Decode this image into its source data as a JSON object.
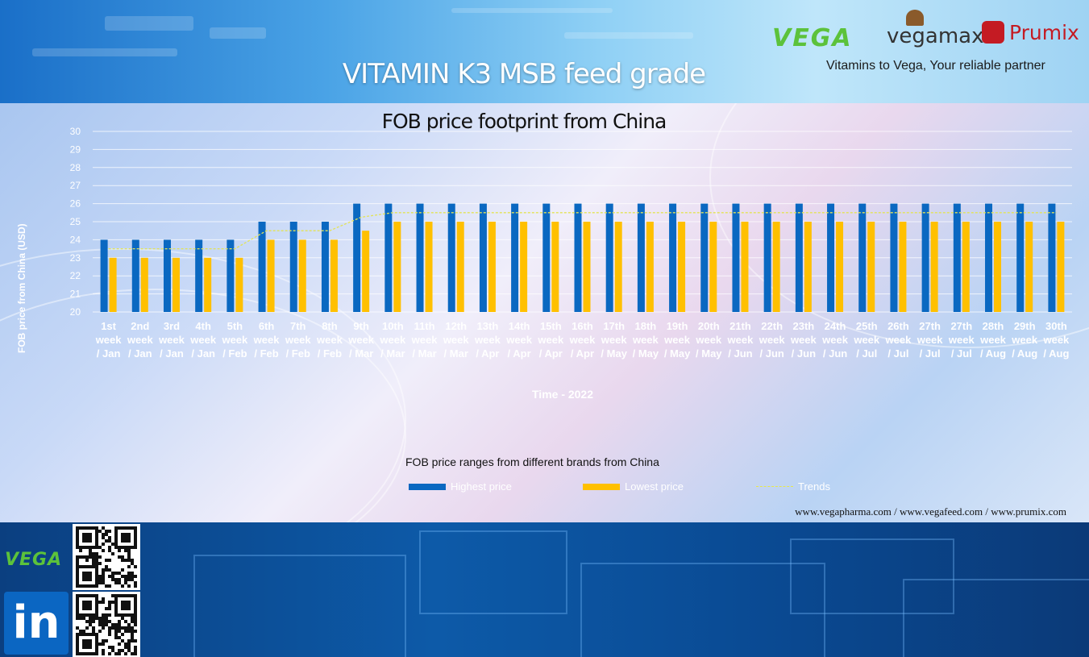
{
  "header": {
    "title": "VITAMIN K3 MSB feed grade",
    "logos": [
      "VEGA",
      "vegamax",
      "Prumix"
    ],
    "tagline": "Vitamins to Vega, Your reliable partner"
  },
  "footer": {
    "url": "www.vegapharma.com / www.vegafeed.com / www.prumix.com",
    "logo": "VEGA",
    "linkedin": "in"
  },
  "colors": {
    "highest": "#0a68c1",
    "lowest": "#ffc000",
    "trend": "#e3e356"
  },
  "chart_data": {
    "type": "bar",
    "title": "FOB price footprint from China",
    "xlabel": "Time - 2022",
    "ylabel": "FOB price from China (USD)",
    "ylim": [
      20,
      30
    ],
    "yticks": [
      "20",
      "21",
      "22",
      "23",
      "24",
      "25",
      "26",
      "27",
      "28",
      "29",
      "30"
    ],
    "grid": true,
    "legend_title": "FOB price ranges from different brands from China",
    "legend_position": "bottom",
    "categories": [
      [
        "1st",
        "week",
        "/ Jan"
      ],
      [
        "2nd",
        "week",
        "/ Jan"
      ],
      [
        "3rd",
        "week",
        "/ Jan"
      ],
      [
        "4th",
        "week",
        "/ Jan"
      ],
      [
        "5th",
        "week",
        "/ Feb"
      ],
      [
        "6th",
        "week",
        "/ Feb"
      ],
      [
        "7th",
        "week",
        "/ Feb"
      ],
      [
        "8th",
        "week",
        "/ Feb"
      ],
      [
        "9th",
        "week",
        "/ Mar"
      ],
      [
        "10th",
        "week",
        "/ Mar"
      ],
      [
        "11th",
        "week",
        "/ Mar"
      ],
      [
        "12th",
        "week",
        "/ Mar"
      ],
      [
        "13th",
        "week",
        "/ Apr"
      ],
      [
        "14th",
        "week",
        "/ Apr"
      ],
      [
        "15th",
        "week",
        "/ Apr"
      ],
      [
        "16th",
        "week",
        "/ Apr"
      ],
      [
        "17th",
        "week",
        "/ May"
      ],
      [
        "18th",
        "week",
        "/ May"
      ],
      [
        "19th",
        "week",
        "/ May"
      ],
      [
        "20th",
        "week",
        "/ May"
      ],
      [
        "21th",
        "week",
        "/ Jun"
      ],
      [
        "22th",
        "week",
        "/ Jun"
      ],
      [
        "23th",
        "week",
        "/ Jun"
      ],
      [
        "24th",
        "week",
        "/ Jun"
      ],
      [
        "25th",
        "week",
        "/ Jul"
      ],
      [
        "26th",
        "week",
        "/ Jul"
      ],
      [
        "27th",
        "week",
        "/ Jul"
      ],
      [
        "27th",
        "week",
        "/ Jul"
      ],
      [
        "28th",
        "week",
        "/ Aug"
      ],
      [
        "29th",
        "week",
        "/ Aug"
      ],
      [
        "30th",
        "week",
        "/ Aug"
      ]
    ],
    "series": [
      {
        "name": "Highest price",
        "values": [
          24,
          24,
          24,
          24,
          24,
          25,
          25,
          25,
          26,
          26,
          26,
          26,
          26,
          26,
          26,
          26,
          26,
          26,
          26,
          26,
          26,
          26,
          26,
          26,
          26,
          26,
          26,
          26,
          26,
          26,
          26
        ]
      },
      {
        "name": "Lowest price",
        "values": [
          23,
          23,
          23,
          23,
          23,
          24,
          24,
          24,
          24.5,
          25,
          25,
          25,
          25,
          25,
          25,
          25,
          25,
          25,
          25,
          25,
          25,
          25,
          25,
          25,
          25,
          25,
          25,
          25,
          25,
          25,
          25
        ]
      },
      {
        "name": "Trends",
        "values": [
          23.5,
          23.5,
          23.5,
          23.5,
          23.5,
          24.5,
          24.5,
          24.5,
          25.25,
          25.5,
          25.5,
          25.5,
          25.5,
          25.5,
          25.5,
          25.5,
          25.5,
          25.5,
          25.5,
          25.5,
          25.5,
          25.5,
          25.5,
          25.5,
          25.5,
          25.5,
          25.5,
          25.5,
          25.5,
          25.5,
          25.5
        ]
      }
    ]
  }
}
